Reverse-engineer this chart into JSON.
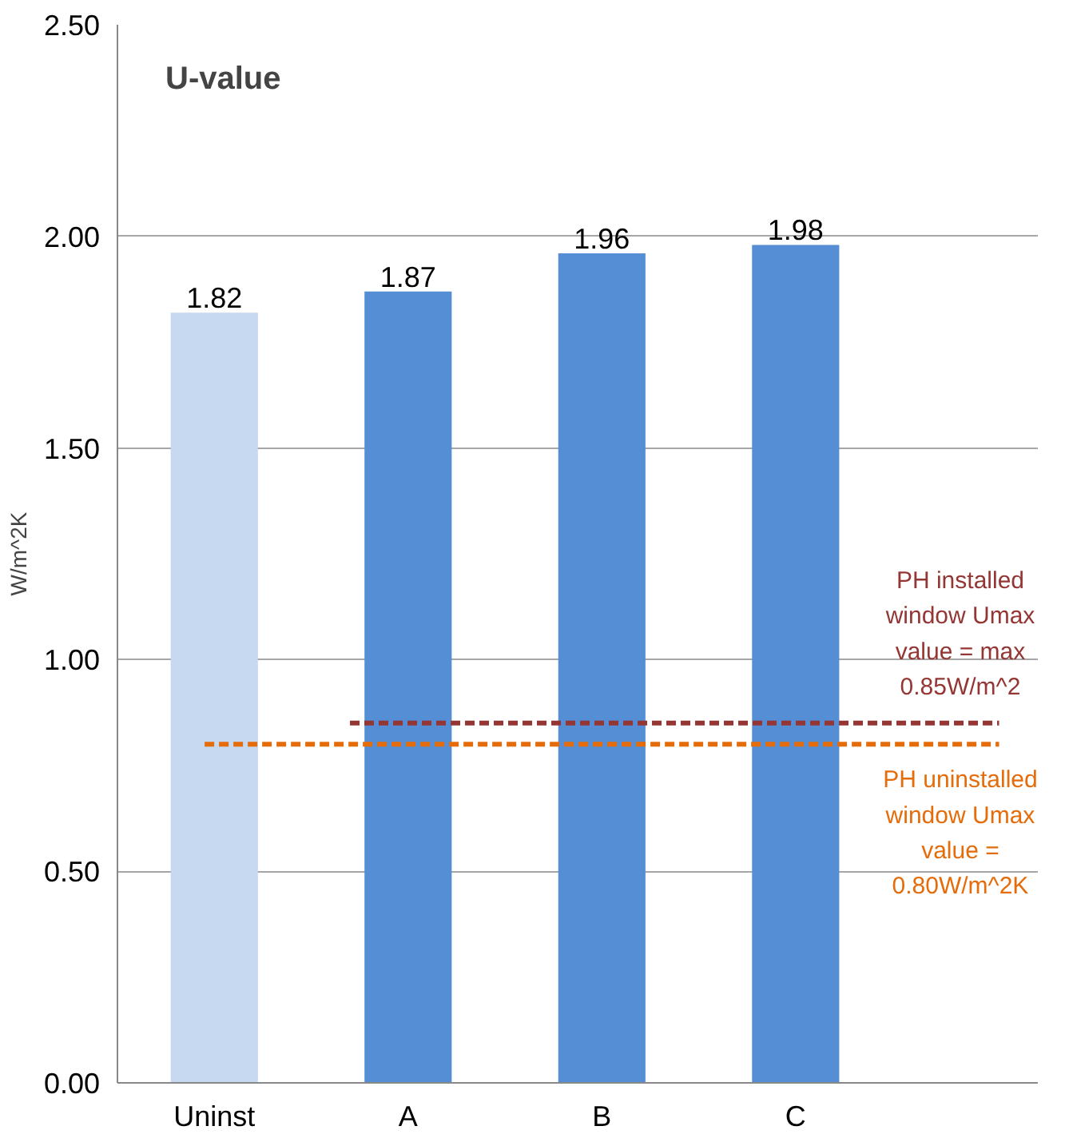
{
  "chart_data": {
    "type": "bar",
    "title": "U-value",
    "ylabel": "W/m^2K",
    "categories": [
      "Uninst",
      "A",
      "B",
      "C"
    ],
    "values": [
      1.82,
      1.87,
      1.96,
      1.98
    ],
    "colors": [
      "#c6d9f0",
      "#558ed5",
      "#558ed5",
      "#558ed5"
    ],
    "data_labels": true,
    "ylim": [
      0,
      2.5
    ],
    "yticks": [
      {
        "value": 0,
        "label": "0.00"
      },
      {
        "value": 0.5,
        "label": "0.50"
      },
      {
        "value": 1,
        "label": "1.00"
      },
      {
        "value": 1.5,
        "label": "1.50"
      },
      {
        "value": 2,
        "label": "2.00"
      },
      {
        "value": 2.5,
        "label": "2.50"
      }
    ],
    "grid": "y",
    "ref_lines": [
      {
        "axis": "y",
        "value": 0.85,
        "label": "PH installed\nwindow Umax\nvalue = max\n0.85W/m^2",
        "color": "#943634",
        "line_style": "dashed"
      },
      {
        "axis": "y",
        "value": 0.8,
        "label": "PH uninstalled\nwindow Umax\nvalue =\n0.80W/m^2K",
        "color": "#e46c0a",
        "line_style": "dashed"
      }
    ]
  }
}
